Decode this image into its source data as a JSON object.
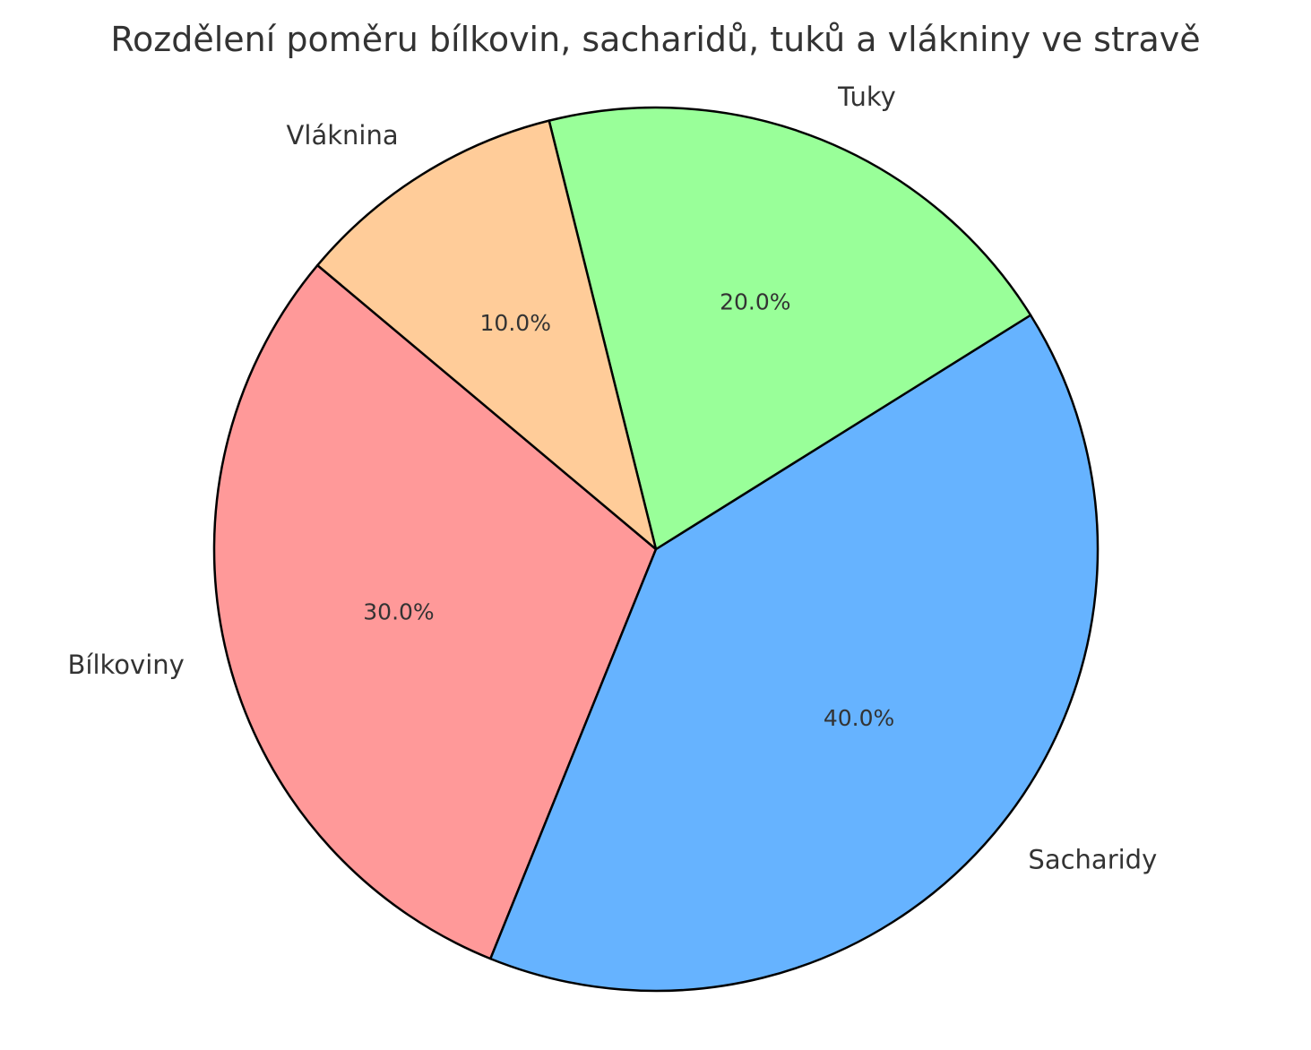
{
  "chart_data": {
    "type": "pie",
    "title": "Rozdělení poměru bílkovin, sacharidů, tuků a vlákniny ve stravě",
    "categories": [
      "Bílkoviny",
      "Sacharidy",
      "Tuky",
      "Vláknina"
    ],
    "values": [
      30,
      40,
      20,
      10
    ],
    "percent_labels": [
      "30.0%",
      "40.0%",
      "20.0%",
      "10.0%"
    ],
    "colors": [
      "#ff9999",
      "#66b3ff",
      "#99ff99",
      "#ffcc99"
    ],
    "start_angle": 140,
    "direction": "counterclockwise",
    "legend": "none"
  }
}
